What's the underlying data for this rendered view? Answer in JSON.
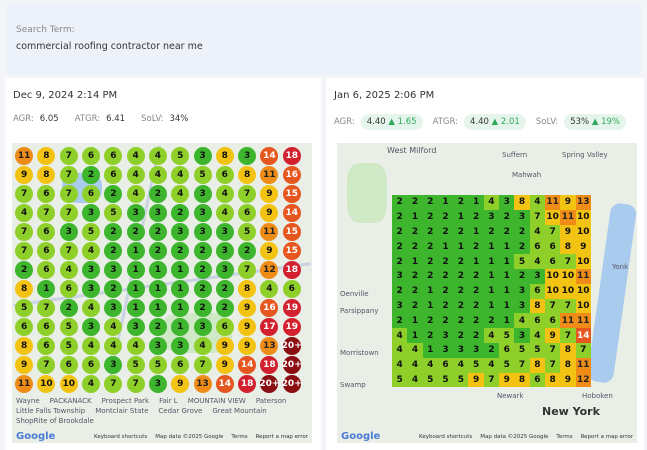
{
  "search": {
    "label": "Search Term:",
    "value": "commercial roofing contractor near me"
  },
  "colors": {
    "g1": "#3db52c",
    "g2": "#8fcf2a",
    "y": "#f3c313",
    "o": "#ee8c17",
    "or": "#e6561f",
    "r": "#d2202f",
    "dr": "#8a0e12"
  },
  "left": {
    "date": "Dec 9, 2024 2:14 PM",
    "agr_label": "AGR:",
    "agr": "6.05",
    "atgr_label": "ATGR:",
    "atgr": "6.41",
    "solv_label": "SoLV:",
    "solv": "34%",
    "map_labels": [
      "Wayne",
      "PACKANACK",
      "Prospect Park",
      "Fair L",
      "MOUNTAIN VIEW",
      "Paterson",
      "Little Falls Township",
      "Montclair State",
      "Cedar Grove",
      "Great Mountain",
      "ShopRite of Brookdale"
    ],
    "grid": [
      [
        "11",
        "8",
        "7",
        "6",
        "6",
        "4",
        "4",
        "5",
        "3",
        "8",
        "3",
        "14",
        "18"
      ],
      [
        "9",
        "8",
        "7",
        "2",
        "6",
        "4",
        "4",
        "4",
        "5",
        "6",
        "8",
        "11",
        "16"
      ],
      [
        "7",
        "6",
        "7",
        "6",
        "2",
        "4",
        "2",
        "4",
        "3",
        "4",
        "7",
        "9",
        "15"
      ],
      [
        "4",
        "7",
        "7",
        "3",
        "5",
        "3",
        "3",
        "2",
        "3",
        "4",
        "6",
        "9",
        "14"
      ],
      [
        "7",
        "6",
        "3",
        "5",
        "2",
        "2",
        "2",
        "3",
        "3",
        "3",
        "5",
        "11",
        "15"
      ],
      [
        "7",
        "6",
        "7",
        "4",
        "2",
        "1",
        "2",
        "2",
        "2",
        "3",
        "2",
        "9",
        "15"
      ],
      [
        "2",
        "6",
        "4",
        "3",
        "3",
        "1",
        "1",
        "1",
        "2",
        "3",
        "7",
        "12",
        "18"
      ],
      [
        "8",
        "1",
        "6",
        "3",
        "2",
        "1",
        "1",
        "1",
        "2",
        "2",
        "8",
        "4",
        "6"
      ],
      [
        "5",
        "7",
        "2",
        "4",
        "3",
        "1",
        "1",
        "1",
        "2",
        "2",
        "9",
        "16",
        "19"
      ],
      [
        "6",
        "6",
        "5",
        "3",
        "4",
        "3",
        "2",
        "1",
        "3",
        "6",
        "9",
        "17",
        "19"
      ],
      [
        "8",
        "6",
        "5",
        "4",
        "4",
        "4",
        "3",
        "3",
        "4",
        "9",
        "9",
        "13",
        "20+"
      ],
      [
        "9",
        "7",
        "6",
        "6",
        "3",
        "5",
        "5",
        "6",
        "7",
        "9",
        "14",
        "18",
        "20+"
      ],
      [
        "11",
        "10",
        "10",
        "4",
        "7",
        "7",
        "3",
        "9",
        "13",
        "14",
        "18",
        "20+",
        "20+"
      ]
    ]
  },
  "right": {
    "date": "Jan 6, 2025 2:06 PM",
    "agr_label": "AGR:",
    "agr": "4.40",
    "agr_delta": "▲ 1.65",
    "atgr_label": "ATGR:",
    "atgr": "4.40",
    "atgr_delta": "▲ 2.01",
    "solv_label": "SoLV:",
    "solv": "53%",
    "solv_delta": "▲ 19%",
    "map_labels": [
      "West Milford",
      "Suffern",
      "Spring Valley",
      "Mahwah",
      "Yonk",
      "Oenville",
      "Parsippany",
      "Morristown",
      "Swamp",
      "Newark",
      "Hoboken",
      "New York"
    ],
    "grid": [
      [
        "2",
        "2",
        "2",
        "1",
        "2",
        "1",
        "4",
        "3",
        "8",
        "4",
        "11",
        "9",
        "13"
      ],
      [
        "2",
        "1",
        "2",
        "2",
        "1",
        "2",
        "3",
        "2",
        "3",
        "7",
        "10",
        "11",
        "10"
      ],
      [
        "2",
        "2",
        "2",
        "2",
        "2",
        "1",
        "2",
        "2",
        "2",
        "4",
        "7",
        "9",
        "10"
      ],
      [
        "2",
        "2",
        "2",
        "1",
        "1",
        "2",
        "1",
        "1",
        "2",
        "6",
        "6",
        "8",
        "9"
      ],
      [
        "2",
        "1",
        "2",
        "2",
        "2",
        "1",
        "1",
        "1",
        "5",
        "4",
        "6",
        "7",
        "10"
      ],
      [
        "3",
        "2",
        "2",
        "2",
        "2",
        "2",
        "1",
        "1",
        "2",
        "3",
        "10",
        "10",
        "11"
      ],
      [
        "2",
        "2",
        "1",
        "2",
        "2",
        "2",
        "1",
        "1",
        "3",
        "6",
        "10",
        "10",
        "10"
      ],
      [
        "3",
        "2",
        "1",
        "2",
        "2",
        "2",
        "1",
        "1",
        "3",
        "8",
        "7",
        "7",
        "10"
      ],
      [
        "2",
        "1",
        "2",
        "2",
        "2",
        "2",
        "2",
        "1",
        "4",
        "6",
        "6",
        "11",
        "11"
      ],
      [
        "4",
        "1",
        "2",
        "3",
        "2",
        "2",
        "4",
        "5",
        "3",
        "4",
        "9",
        "7",
        "14"
      ],
      [
        "4",
        "4",
        "1",
        "3",
        "3",
        "3",
        "2",
        "6",
        "5",
        "5",
        "7",
        "8",
        "7"
      ],
      [
        "4",
        "4",
        "4",
        "6",
        "4",
        "5",
        "4",
        "5",
        "7",
        "8",
        "7",
        "8",
        "11"
      ],
      [
        "5",
        "4",
        "5",
        "5",
        "5",
        "9",
        "7",
        "9",
        "8",
        "6",
        "8",
        "9",
        "12"
      ]
    ]
  },
  "footer": {
    "logo": "Google",
    "shortcuts": "Keyboard shortcuts",
    "mapdata": "Map data ©2025 Google",
    "terms": "Terms",
    "report": "Report a map error"
  }
}
